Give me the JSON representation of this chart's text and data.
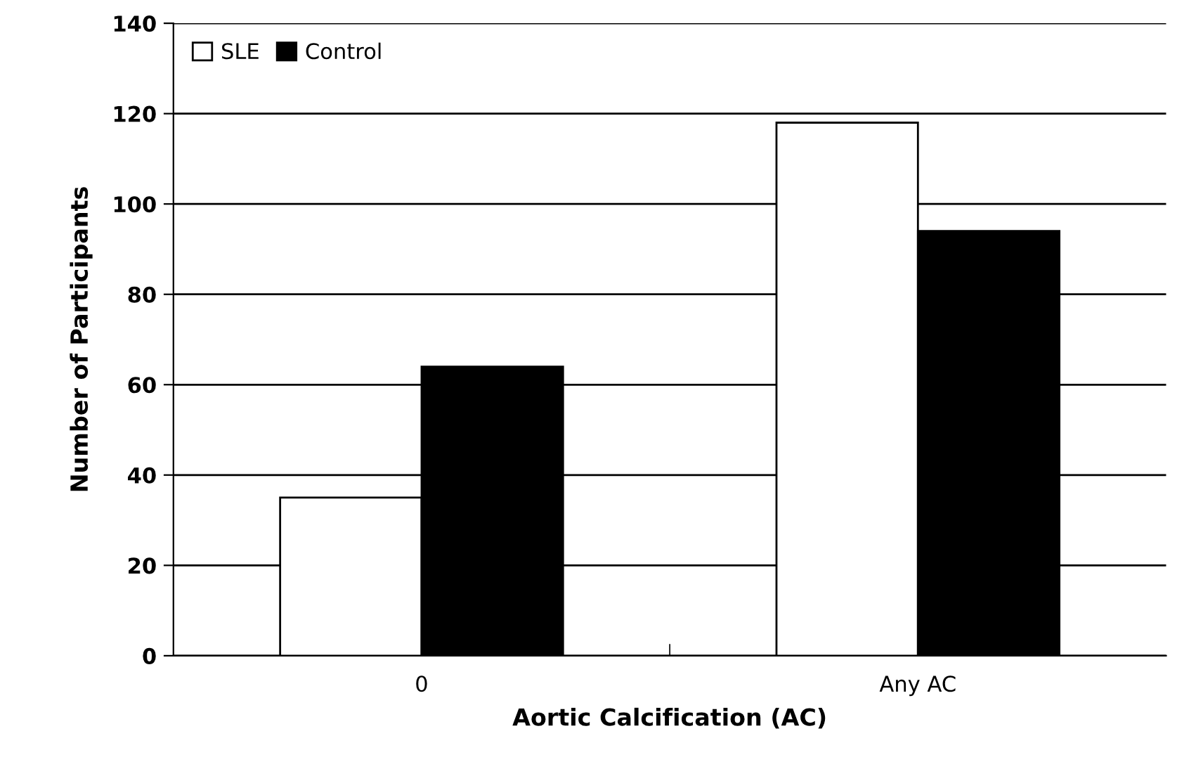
{
  "chart_data": {
    "type": "bar",
    "xlabel": "Aortic Calcification (AC)",
    "ylabel": "Number of Participants",
    "categories": [
      "0",
      "Any AC"
    ],
    "series": [
      {
        "name": "SLE",
        "color": "#ffffff",
        "values": [
          35,
          118
        ]
      },
      {
        "name": "Control",
        "color": "#000000",
        "values": [
          64,
          94
        ]
      }
    ],
    "ylim": [
      0,
      140
    ],
    "yticks": [
      0,
      20,
      40,
      60,
      80,
      100,
      120,
      140
    ],
    "grid": "y",
    "legend": "top left"
  }
}
